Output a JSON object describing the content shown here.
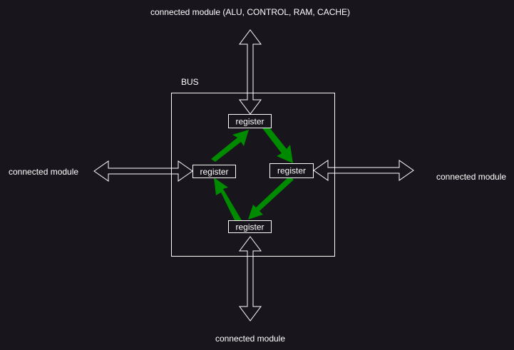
{
  "labels": {
    "top": "connected module (ALU, CONTROL, RAM, CACHE)",
    "left": "connected module",
    "right": "connected module",
    "bottom": "connected module",
    "bus": "BUS"
  },
  "registers": {
    "top": "register",
    "left": "register",
    "right": "register",
    "bottom": "register"
  },
  "colors": {
    "background": "#18161c",
    "stroke": "#ffffff",
    "cycle_arrow": "#008a00"
  }
}
